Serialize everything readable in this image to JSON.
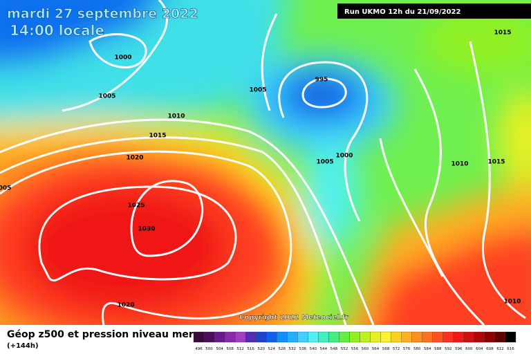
{
  "header": {
    "date": "mardi 27 septembre 2022",
    "time": "14:00 locale",
    "run": "Run UKMO 12h du 21/09/2022"
  },
  "map": {
    "isobar_labels": [
      "1000",
      "1005",
      "1005",
      "995",
      "1010",
      "1015",
      "1020",
      "1025",
      "1030",
      "1020",
      "1005",
      "1000",
      "1010",
      "1015",
      "1015",
      "1010",
      "005"
    ],
    "copyright": "Copyright 2022 Meteociel.fr"
  },
  "legend": {
    "title": "Géop z500 et pression niveau mer",
    "lead": "(+144h)",
    "levels": [
      496,
      500,
      504,
      508,
      512,
      516,
      520,
      524,
      528,
      532,
      536,
      540,
      544,
      548,
      552,
      556,
      560,
      564,
      568,
      572,
      576,
      580,
      584,
      588,
      592,
      596,
      600,
      604,
      608,
      612,
      616
    ],
    "colors": [
      "#3a0a3a",
      "#4b0f5a",
      "#6a1a8a",
      "#8a2aaa",
      "#a040c0",
      "#5030b0",
      "#2040d0",
      "#1060f0",
      "#1090ff",
      "#20b0ff",
      "#40d0ff",
      "#50f0f0",
      "#40f0c0",
      "#40f080",
      "#60f040",
      "#90f020",
      "#c0f020",
      "#e8f020",
      "#fff030",
      "#ffd020",
      "#ffb020",
      "#ff9020",
      "#ff7020",
      "#ff5020",
      "#ff3020",
      "#f01818",
      "#d01010",
      "#b00808",
      "#900000",
      "#600000",
      "#000000"
    ]
  }
}
